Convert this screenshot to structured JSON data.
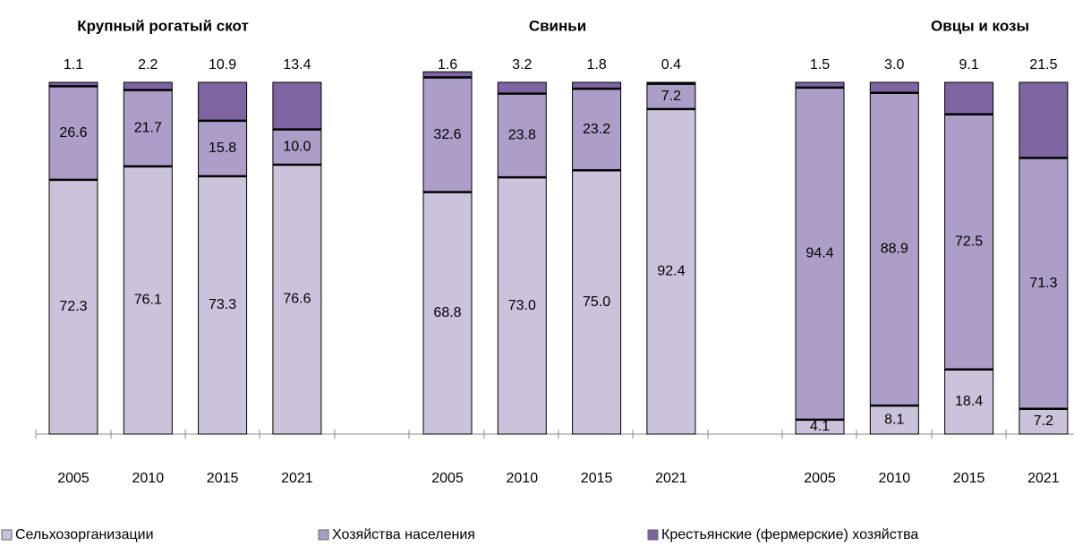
{
  "chart_data": {
    "type": "bar",
    "stacked": true,
    "ylim": [
      0,
      100
    ],
    "series": [
      {
        "name": "Сельхозорганизации",
        "color": "#cbc3dc"
      },
      {
        "name": "Хозяйства населения",
        "color": "#ac9ec8"
      },
      {
        "name": "Крестьянские (фермерские) хозяйства",
        "color": "#7f64a2"
      }
    ],
    "panels": [
      {
        "title": "Крупный рогатый скот",
        "categories": [
          "2005",
          "2010",
          "2015",
          "2021"
        ],
        "values": [
          [
            72.3,
            76.1,
            73.3,
            76.6
          ],
          [
            26.6,
            21.7,
            15.8,
            10
          ],
          [
            1.1,
            2.2,
            10.9,
            13.4
          ]
        ],
        "value_labels": [
          [
            "72.3",
            "76.1",
            "73.3",
            "76.6"
          ],
          [
            "26.6",
            "21.7",
            "15.8",
            "10.0"
          ],
          [
            "1.1",
            "2.2",
            "10.9",
            "13.4"
          ]
        ]
      },
      {
        "title": "Свиньи",
        "categories": [
          "2005",
          "2010",
          "2015",
          "2021"
        ],
        "values": [
          [
            68.8,
            73,
            75,
            92.4
          ],
          [
            32.6,
            23.8,
            23.2,
            7.2
          ],
          [
            1.6,
            3.2,
            1.8,
            0.4
          ]
        ],
        "value_labels": [
          [
            "68.8",
            "73.0",
            "75.0",
            "92.4"
          ],
          [
            "32.6",
            "23.8",
            "23.2",
            "7.2"
          ],
          [
            "1.6",
            "3.2",
            "1.8",
            "0.4"
          ]
        ]
      },
      {
        "title": "Овцы и козы",
        "categories": [
          "2005",
          "2010",
          "2015",
          "2021"
        ],
        "values": [
          [
            4.1,
            8.1,
            18.4,
            7.2
          ],
          [
            94.4,
            88.9,
            72.5,
            71.3
          ],
          [
            1.5,
            3,
            9.1,
            21.5
          ]
        ],
        "value_labels": [
          [
            "4.1",
            "8.1",
            "18.4",
            "7.2"
          ],
          [
            "94.4",
            "88.9",
            "72.5",
            "71.3"
          ],
          [
            "1.5",
            "3.0",
            "9.1",
            "21.5"
          ]
        ]
      }
    ]
  }
}
